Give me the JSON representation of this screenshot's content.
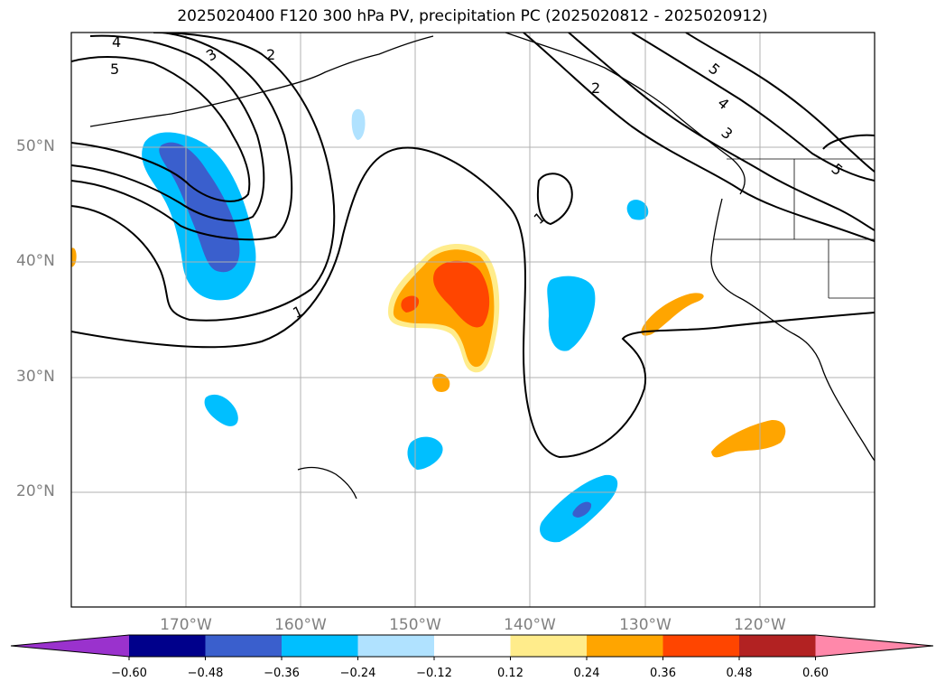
{
  "title": "2025020400 F120 300 hPa PV, precipitation PC (2025020812 - 2025020912)",
  "map": {
    "projection": "PlateCarree",
    "extent_lon": [
      -180,
      -110
    ],
    "extent_lat": [
      10,
      60
    ],
    "gridlines": true
  },
  "latitude_labels": [
    {
      "lat": 50,
      "text": "50°N"
    },
    {
      "lat": 40,
      "text": "40°N"
    },
    {
      "lat": 30,
      "text": "30°N"
    },
    {
      "lat": 20,
      "text": "20°N"
    }
  ],
  "longitude_labels": [
    {
      "lon": -170,
      "text": "170°W"
    },
    {
      "lon": -160,
      "text": "160°W"
    },
    {
      "lon": -150,
      "text": "150°W"
    },
    {
      "lon": -140,
      "text": "140°W"
    },
    {
      "lon": -130,
      "text": "130°W"
    },
    {
      "lon": -120,
      "text": "120°W"
    }
  ],
  "pv_contour_labels": [
    "1",
    "1",
    "3",
    "4",
    "5",
    "2",
    "3",
    "4",
    "5",
    "5",
    "2"
  ],
  "colorbar": {
    "ticks": [
      "−0.60",
      "−0.48",
      "−0.36",
      "−0.24",
      "−0.12",
      "0.12",
      "0.24",
      "0.36",
      "0.48",
      "0.60"
    ],
    "colors": [
      "#9a32cd",
      "#00008b",
      "#3a5fcd",
      "#00bfff",
      "#b0e2ff",
      "#ffffff",
      "#ffec8b",
      "#ffa500",
      "#ff4500",
      "#b22222",
      "#ff88aa"
    ],
    "extend": "both"
  }
}
